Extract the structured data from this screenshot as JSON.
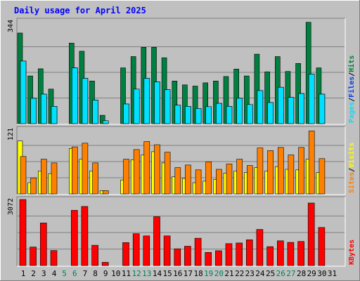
{
  "title": "Daily usage for April 2025",
  "colors": {
    "background": "#c0c0c0",
    "plot_background": "#c0c0c0",
    "grid": "#808080",
    "title": "#0000ff",
    "hits": "#008040",
    "files": "#0040ff",
    "pages": "#00e0ff",
    "visits": "#ffff00",
    "sites": "#ff8000",
    "kbytes": "#ff0000",
    "day_label": "#000000",
    "weekend_label": "#00805c"
  },
  "chart_data": [
    {
      "type": "bar",
      "panel": "hits_files_pages",
      "y_max_label": "344",
      "ylim": [
        0,
        344
      ],
      "right_labels": [
        {
          "text": "Pages",
          "color": "#00e0ff"
        },
        {
          "text": "/",
          "color": "#000000"
        },
        {
          "text": "Files",
          "color": "#0040ff"
        },
        {
          "text": "/",
          "color": "#000000"
        },
        {
          "text": "Hits",
          "color": "#008040"
        }
      ],
      "categories": [
        "1",
        "2",
        "3",
        "4",
        "5",
        "6",
        "7",
        "8",
        "9",
        "10",
        "11",
        "12",
        "13",
        "14",
        "15",
        "16",
        "17",
        "18",
        "19",
        "20",
        "21",
        "22",
        "23",
        "24",
        "25",
        "26",
        "27",
        "28",
        "29",
        "30",
        "31"
      ],
      "series": [
        {
          "name": "Hits",
          "color": "#008040",
          "values": [
            304,
            160,
            184,
            116,
            0,
            270,
            243,
            143,
            28,
            0,
            187,
            225,
            256,
            256,
            221,
            143,
            130,
            126,
            137,
            143,
            158,
            183,
            160,
            233,
            174,
            225,
            175,
            202,
            340,
            187,
            0
          ]
        },
        {
          "name": "Files",
          "color": "#0040ff",
          "values": [
            210,
            85,
            99,
            58,
            0,
            187,
            152,
            79,
            10,
            0,
            66,
            116,
            152,
            140,
            114,
            62,
            58,
            51,
            57,
            68,
            58,
            85,
            64,
            111,
            71,
            122,
            88,
            101,
            166,
            99,
            0
          ]
        },
        {
          "name": "Pages",
          "color": "#00e0ff",
          "values": [
            210,
            85,
            99,
            58,
            0,
            187,
            152,
            79,
            10,
            0,
            66,
            116,
            152,
            140,
            114,
            62,
            58,
            51,
            57,
            68,
            58,
            85,
            64,
            111,
            71,
            122,
            88,
            101,
            166,
            99,
            0
          ]
        }
      ]
    },
    {
      "type": "bar",
      "panel": "visits_sites",
      "y_max_label": "121",
      "ylim": [
        0,
        121
      ],
      "right_labels": [
        {
          "text": "Sites",
          "color": "#ff8000"
        },
        {
          "text": "/",
          "color": "#000000"
        },
        {
          "text": "Visits",
          "color": "#ffff00"
        }
      ],
      "categories": [
        "1",
        "2",
        "3",
        "4",
        "5",
        "6",
        "7",
        "8",
        "9",
        "10",
        "11",
        "12",
        "13",
        "14",
        "15",
        "16",
        "17",
        "18",
        "19",
        "20",
        "21",
        "22",
        "23",
        "24",
        "25",
        "26",
        "27",
        "28",
        "29",
        "30",
        "31"
      ],
      "series": [
        {
          "name": "Visits",
          "color": "#ffff00",
          "values": [
            99,
            21,
            43,
            38,
            0,
            85,
            65,
            43,
            6,
            0,
            26,
            64,
            73,
            79,
            58,
            32,
            29,
            21,
            24,
            27,
            39,
            43,
            40,
            49,
            43,
            51,
            46,
            45,
            65,
            40,
            0
          ]
        },
        {
          "name": "Sites",
          "color": "#ff8000",
          "values": [
            70,
            30,
            65,
            58,
            0,
            88,
            95,
            58,
            6,
            0,
            65,
            83,
            98,
            92,
            78,
            49,
            54,
            45,
            60,
            46,
            56,
            65,
            53,
            86,
            81,
            87,
            73,
            87,
            118,
            66,
            0
          ]
        }
      ]
    },
    {
      "type": "bar",
      "panel": "kbytes",
      "y_max_label": "3072",
      "ylim": [
        0,
        3072
      ],
      "right_labels": [
        {
          "text": "KBytes",
          "color": "#ff0000"
        }
      ],
      "categories": [
        "1",
        "2",
        "3",
        "4",
        "5",
        "6",
        "7",
        "8",
        "9",
        "10",
        "11",
        "12",
        "13",
        "14",
        "15",
        "16",
        "17",
        "18",
        "19",
        "20",
        "21",
        "22",
        "23",
        "24",
        "25",
        "26",
        "27",
        "28",
        "29",
        "30",
        "31"
      ],
      "series": [
        {
          "name": "KBytes",
          "color": "#ff0000",
          "values": [
            3072,
            860,
            1980,
            700,
            0,
            2570,
            2750,
            945,
            150,
            0,
            1070,
            1480,
            1380,
            2270,
            1380,
            780,
            900,
            1270,
            610,
            690,
            1020,
            1050,
            1200,
            1680,
            880,
            1150,
            1080,
            1120,
            2910,
            1770,
            0
          ]
        }
      ]
    }
  ],
  "day_labels": [
    {
      "text": "1",
      "weekend": false
    },
    {
      "text": "2",
      "weekend": false
    },
    {
      "text": "3",
      "weekend": false
    },
    {
      "text": "4",
      "weekend": false
    },
    {
      "text": "5",
      "weekend": true
    },
    {
      "text": "6",
      "weekend": true
    },
    {
      "text": "7",
      "weekend": false
    },
    {
      "text": "8",
      "weekend": false
    },
    {
      "text": "9",
      "weekend": false
    },
    {
      "text": "10",
      "weekend": false
    },
    {
      "text": "11",
      "weekend": false
    },
    {
      "text": "12",
      "weekend": true
    },
    {
      "text": "13",
      "weekend": true
    },
    {
      "text": "14",
      "weekend": false
    },
    {
      "text": "15",
      "weekend": false
    },
    {
      "text": "16",
      "weekend": false
    },
    {
      "text": "17",
      "weekend": false
    },
    {
      "text": "18",
      "weekend": false
    },
    {
      "text": "19",
      "weekend": true
    },
    {
      "text": "20",
      "weekend": true
    },
    {
      "text": "21",
      "weekend": false
    },
    {
      "text": "22",
      "weekend": false
    },
    {
      "text": "23",
      "weekend": false
    },
    {
      "text": "24",
      "weekend": false
    },
    {
      "text": "25",
      "weekend": false
    },
    {
      "text": "26",
      "weekend": true
    },
    {
      "text": "27",
      "weekend": true
    },
    {
      "text": "28",
      "weekend": false
    },
    {
      "text": "29",
      "weekend": false
    },
    {
      "text": "30",
      "weekend": false
    },
    {
      "text": "31",
      "weekend": false
    }
  ]
}
